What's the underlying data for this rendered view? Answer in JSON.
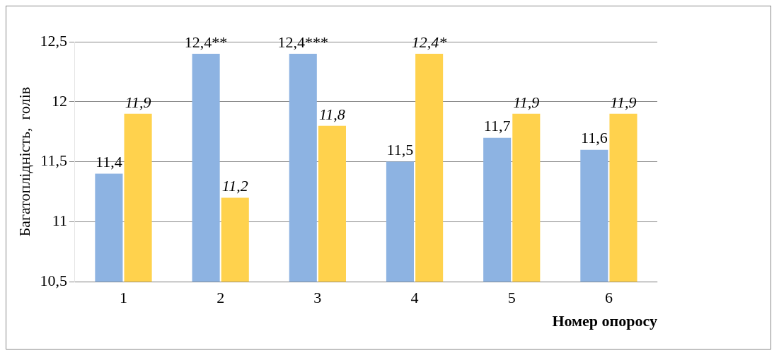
{
  "chart_data": {
    "type": "bar",
    "xlabel": "Номер опоросу",
    "ylabel": "Багатоплідність,  голів",
    "categories": [
      "1",
      "2",
      "3",
      "4",
      "5",
      "6"
    ],
    "series": [
      {
        "color": "#8db3e2",
        "values": [
          11.4,
          12.4,
          12.4,
          11.5,
          11.7,
          11.6
        ],
        "value_labels": [
          "11,4",
          "12,4**",
          "12,4***",
          "11,5",
          "11,7",
          "11,6"
        ]
      },
      {
        "color": "#ffd24d",
        "values": [
          11.9,
          11.2,
          11.8,
          12.4,
          11.9,
          11.9
        ],
        "value_labels": [
          "11,9",
          "11,2",
          "11,8",
          "12,4*",
          "11,9",
          "11,9"
        ]
      }
    ],
    "ylim": [
      10.5,
      12.5
    ],
    "yticks": [
      {
        "value": 10.5,
        "label": "10,5"
      },
      11,
      {
        "value": 11.5,
        "label": "11,5"
      },
      12,
      {
        "value": 12.5,
        "label": "12,5"
      }
    ],
    "grid": "y",
    "legend": false
  }
}
